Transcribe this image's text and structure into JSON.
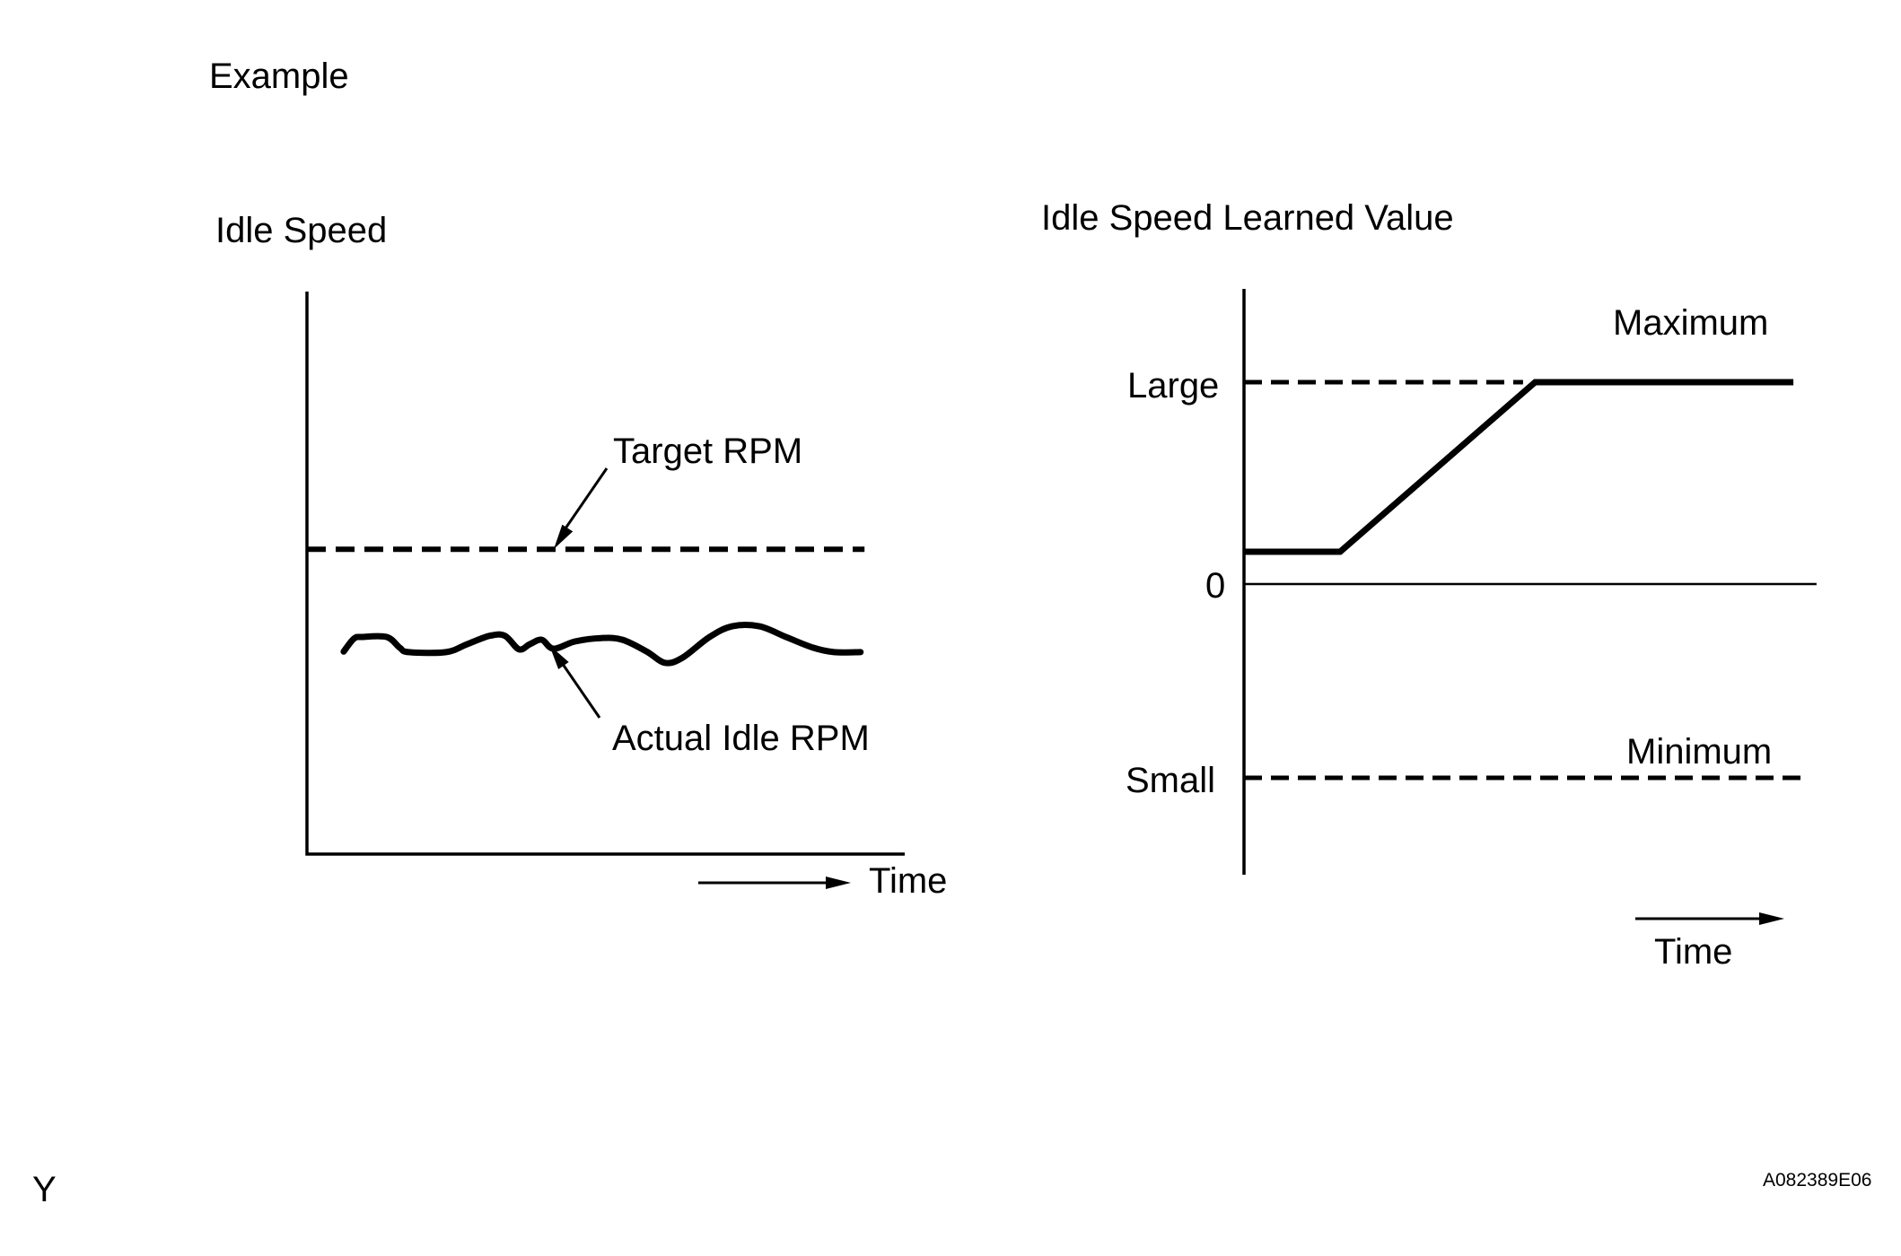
{
  "header": {
    "example_label": "Example"
  },
  "footer": {
    "page_marker": "Y",
    "figure_code": "A082389E06"
  },
  "chart_data": [
    {
      "type": "line",
      "title": "Idle Speed",
      "xlabel": "Time",
      "x_range": [
        0,
        10
      ],
      "y_axis": {
        "label": "",
        "tick_labels": []
      },
      "series": [
        {
          "name": "Target RPM",
          "style": "dashed",
          "points": [
            [
              0,
              0.542
            ],
            [
              9.86,
              0.542
            ]
          ]
        },
        {
          "name": "Actual Idle RPM",
          "style": "solid",
          "smooth": true,
          "points": [
            [
              0.65,
              0.36
            ],
            [
              0.83,
              0.383
            ],
            [
              0.97,
              0.386
            ],
            [
              1.41,
              0.386
            ],
            [
              1.64,
              0.367
            ],
            [
              1.8,
              0.359
            ],
            [
              2.46,
              0.359
            ],
            [
              2.83,
              0.373
            ],
            [
              3.23,
              0.388
            ],
            [
              3.5,
              0.388
            ],
            [
              3.75,
              0.364
            ],
            [
              3.94,
              0.373
            ],
            [
              4.15,
              0.381
            ],
            [
              4.36,
              0.365
            ],
            [
              4.74,
              0.378
            ],
            [
              5.21,
              0.384
            ],
            [
              5.58,
              0.381
            ],
            [
              6.01,
              0.36
            ],
            [
              6.33,
              0.34
            ],
            [
              6.64,
              0.349
            ],
            [
              7.12,
              0.386
            ],
            [
              7.52,
              0.405
            ],
            [
              8.0,
              0.405
            ],
            [
              8.47,
              0.386
            ],
            [
              8.95,
              0.367
            ],
            [
              9.32,
              0.359
            ],
            [
              9.79,
              0.359
            ]
          ]
        }
      ],
      "annotations": [
        {
          "text": "Target RPM",
          "target": "Target RPM line"
        },
        {
          "text": "Actual Idle RPM",
          "target": "Actual Idle RPM curve"
        }
      ]
    },
    {
      "type": "line",
      "title": "Idle Speed Learned Value",
      "xlabel": "Time",
      "x_range": [
        0,
        10
      ],
      "y_levels": [
        {
          "label": "Large",
          "value": 1
        },
        {
          "label": "0",
          "value": 0
        },
        {
          "label": "Small",
          "value": -1
        }
      ],
      "reference_lines": [
        {
          "label": "Large",
          "annotation": "Maximum",
          "style": "dashed",
          "value": 1,
          "span": [
            0,
            4.82
          ]
        },
        {
          "label": "0",
          "annotation": "",
          "style": "solid-thin",
          "value": 0,
          "span": [
            0,
            9.89
          ]
        },
        {
          "label": "Small",
          "annotation": "Minimum",
          "style": "dashed",
          "value": -1,
          "span": [
            0,
            9.64
          ]
        }
      ],
      "series": [
        {
          "name": "Idle Speed Learned Value",
          "style": "solid",
          "points": [
            [
              0,
              0.16
            ],
            [
              1.66,
              0.16
            ],
            [
              5.03,
              1
            ],
            [
              9.49,
              1
            ]
          ]
        }
      ]
    }
  ]
}
